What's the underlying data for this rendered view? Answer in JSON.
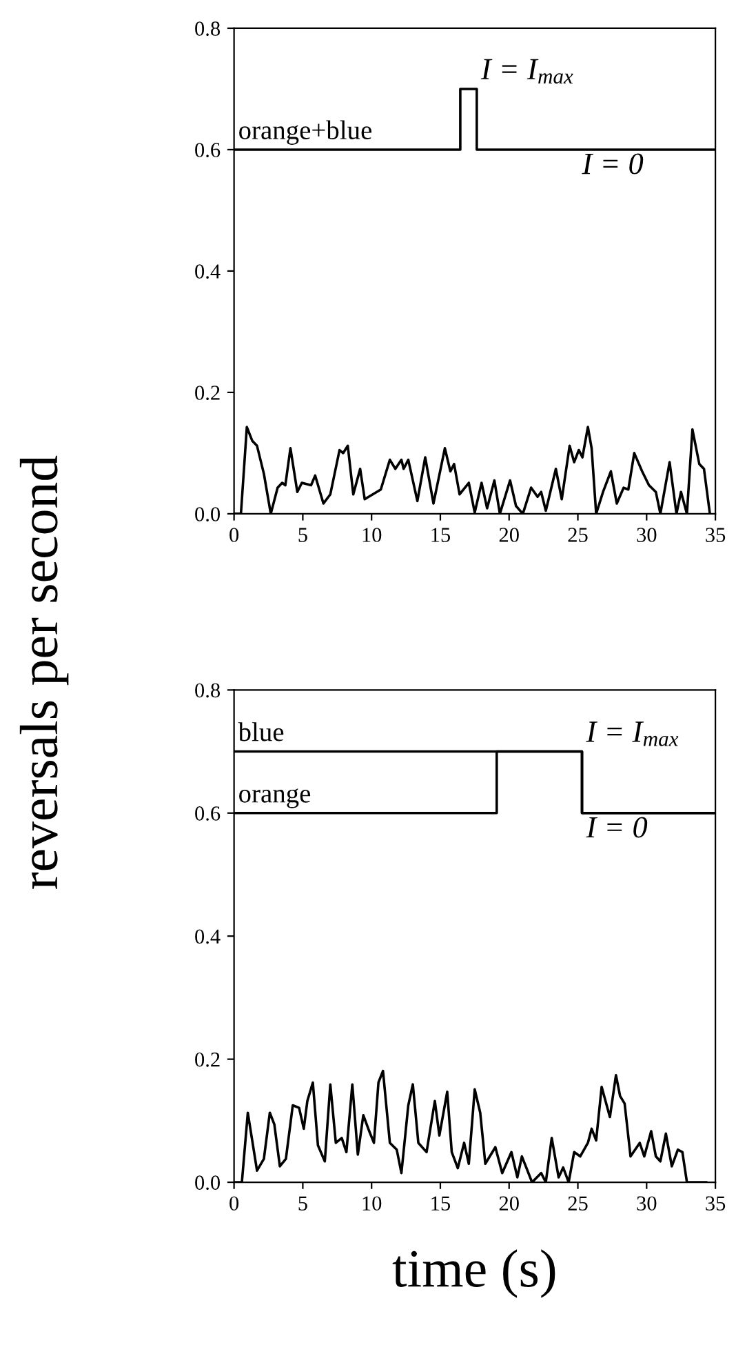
{
  "chart_data": [
    {
      "type": "line",
      "ylabel": "reversals per second",
      "xlim": [
        0,
        35
      ],
      "ylim": [
        0,
        0.8
      ],
      "xticks": [
        0,
        5,
        10,
        15,
        20,
        25,
        30,
        35
      ],
      "yticks": [
        {
          "value": 0,
          "label": "0.0"
        },
        {
          "value": 0.2,
          "label": "0.2"
        },
        {
          "value": 0.4,
          "label": "0.4"
        },
        {
          "value": 0.6,
          "label": "0.6"
        },
        {
          "value": 0.8,
          "label": "0.8"
        }
      ],
      "annotations": [
        {
          "text": "I = I$_{max}$",
          "x": 17.65,
          "y": 0.7
        },
        {
          "text": "I = 0",
          "x": 25,
          "y": 0.6
        }
      ],
      "series": [
        {
          "type": "step",
          "name": "orange+blue",
          "color": "#000000",
          "x": [
            0,
            16.45,
            17.65,
            35
          ],
          "values": [
            0.6,
            0.7,
            0.6,
            0.6
          ]
        },
        {
          "color": "#000000",
          "x": [
            0,
            0.5,
            0.93,
            1.33,
            1.67,
            2.17,
            2.67,
            3.17,
            3.5,
            3.73,
            4.1,
            4.6,
            4.93,
            5.6,
            5.9,
            6.5,
            7.0,
            7.67,
            7.93,
            8.27,
            8.67,
            9.17,
            9.5,
            10.67,
            11.33,
            11.73,
            12.17,
            12.33,
            12.67,
            13.33,
            13.9,
            14.5,
            15.33,
            15.73,
            16,
            16.4,
            17.07,
            17.5,
            18,
            18.4,
            18.93,
            19.33,
            20.07,
            20.5,
            21,
            21.6,
            22.07,
            22.33,
            22.67,
            23.4,
            23.83,
            24.4,
            24.73,
            25.07,
            25.33,
            25.73,
            26,
            26.33,
            26.83,
            27.4,
            27.83,
            28.33,
            28.67,
            29.1,
            29.67,
            30.17,
            30.67,
            31,
            31.67,
            32.17,
            32.5,
            32.93,
            33.33,
            33.83,
            34.17,
            34.6
          ],
          "values": [
            0,
            0,
            0.143,
            0.12,
            0.112,
            0.066,
            0,
            0.043,
            0.051,
            0.047,
            0.108,
            0.036,
            0.051,
            0.047,
            0.063,
            0.017,
            0.032,
            0.105,
            0.1,
            0.112,
            0.032,
            0.074,
            0.024,
            0.04,
            0.089,
            0.074,
            0.089,
            0.074,
            0.089,
            0.021,
            0.093,
            0.017,
            0.108,
            0.07,
            0.082,
            0.032,
            0.051,
            0.002,
            0.051,
            0.009,
            0.055,
            0,
            0.055,
            0.013,
            0,
            0.043,
            0.028,
            0.036,
            0.005,
            0.074,
            0.024,
            0.112,
            0.085,
            0.105,
            0.093,
            0.143,
            0.108,
            0,
            0.036,
            0.07,
            0.017,
            0.043,
            0.04,
            0.1,
            0.07,
            0.047,
            0.036,
            0,
            0.085,
            0,
            0.036,
            0,
            0.139,
            0.082,
            0.074,
            0
          ]
        }
      ]
    },
    {
      "type": "line",
      "xlabel": "time (s)",
      "xlim": [
        0,
        35
      ],
      "ylim": [
        0,
        0.8
      ],
      "xticks": [
        0,
        5,
        10,
        15,
        20,
        25,
        30,
        35
      ],
      "yticks": [
        {
          "value": 0,
          "label": "0.0"
        },
        {
          "value": 0.2,
          "label": "0.2"
        },
        {
          "value": 0.4,
          "label": "0.4"
        },
        {
          "value": 0.6,
          "label": "0.6"
        },
        {
          "value": 0.8,
          "label": "0.8"
        }
      ],
      "annotations": [
        {
          "text": "I = I$_{max}$",
          "x": 25.3,
          "y": 0.7
        },
        {
          "text": "I = 0",
          "x": 25.3,
          "y": 0.6
        }
      ],
      "series": [
        {
          "type": "step",
          "name": "blue",
          "color": "#000000",
          "x": [
            0,
            25.3,
            35
          ],
          "values": [
            0.7,
            0.6,
            0.6
          ]
        },
        {
          "type": "step",
          "name": "orange",
          "color": "#000000",
          "x": [
            0,
            19.1,
            25.3,
            35
          ],
          "values": [
            0.6,
            0.7,
            0.6,
            0.6
          ]
        },
        {
          "color": "#000000",
          "x": [
            0,
            0.57,
            1.0,
            1.67,
            2.17,
            2.6,
            2.93,
            3.33,
            3.77,
            4.27,
            4.73,
            5.07,
            5.33,
            5.73,
            6.1,
            6.6,
            7.0,
            7.4,
            7.83,
            8.17,
            8.6,
            9.0,
            9.4,
            9.83,
            10.17,
            10.5,
            10.83,
            11.33,
            11.83,
            12.17,
            12.67,
            13.0,
            13.4,
            14,
            14.6,
            14.93,
            15.5,
            15.83,
            16.27,
            16.73,
            17.07,
            17.5,
            17.9,
            18.27,
            19,
            19.5,
            20.17,
            20.6,
            20.93,
            21.67,
            22.33,
            22.67,
            23.1,
            23.6,
            23.93,
            24.33,
            24.73,
            25.17,
            25.73,
            26,
            26.33,
            26.73,
            27.33,
            27.77,
            28.07,
            28.4,
            28.83,
            29.5,
            29.83,
            30.33,
            30.67,
            31,
            31.4,
            31.83,
            32.27,
            32.6,
            32.93,
            34.33
          ],
          "values": [
            0,
            0,
            0.113,
            0.019,
            0.038,
            0.113,
            0.094,
            0.026,
            0.038,
            0.125,
            0.121,
            0.087,
            0.132,
            0.162,
            0.06,
            0.034,
            0.159,
            0.064,
            0.072,
            0.049,
            0.159,
            0.045,
            0.109,
            0.083,
            0.064,
            0.162,
            0.181,
            0.064,
            0.053,
            0.015,
            0.125,
            0.159,
            0.064,
            0.049,
            0.132,
            0.076,
            0.147,
            0.049,
            0.023,
            0.064,
            0.03,
            0.151,
            0.113,
            0.03,
            0.057,
            0.015,
            0.049,
            0.008,
            0.042,
            0,
            0.015,
            0,
            0.072,
            0.008,
            0.024,
            0,
            0.049,
            0.042,
            0.064,
            0.087,
            0.068,
            0.155,
            0.106,
            0.174,
            0.14,
            0.128,
            0.042,
            0.064,
            0.042,
            0.083,
            0.042,
            0.034,
            0.079,
            0.026,
            0.053,
            0.049,
            0,
            0
          ]
        }
      ]
    }
  ]
}
